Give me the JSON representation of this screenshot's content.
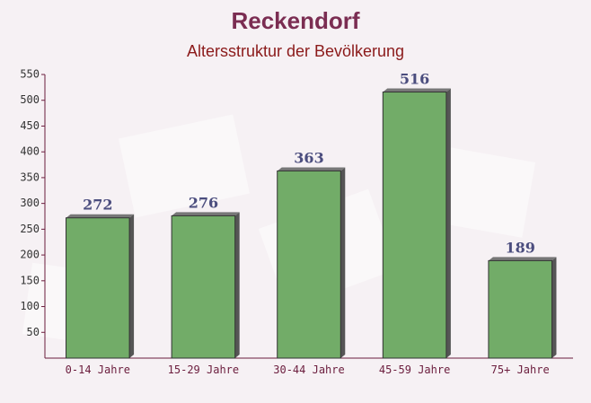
{
  "chart_data": {
    "type": "bar",
    "title": "Reckendorf",
    "subtitle": "Altersstruktur der Bevölkerung",
    "categories": [
      "0-14 Jahre",
      "15-29 Jahre",
      "30-44 Jahre",
      "45-59 Jahre",
      "75+ Jahre"
    ],
    "values": [
      272,
      276,
      363,
      516,
      189
    ],
    "color": "#6aa860",
    "ylim": [
      0,
      550
    ],
    "yticks": [
      50,
      100,
      150,
      200,
      250,
      300,
      350,
      400,
      450,
      500,
      550
    ]
  }
}
